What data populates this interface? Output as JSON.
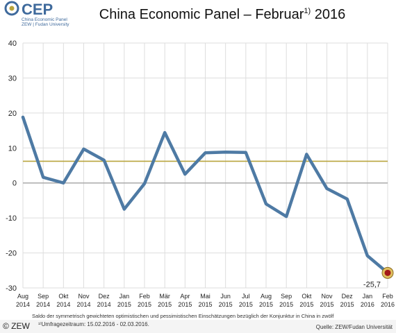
{
  "logo": {
    "text": "CEP",
    "line1": "China Economic Panel",
    "line2": "ZEW | Fudan University"
  },
  "title": "China Economic Panel – Februar",
  "title_sup": "1)",
  "title_year": "2016",
  "footer": {
    "copyright": "© ZEW",
    "note_line1": "Saldo der symmetrisch gewichteten optimistischen und pessimistischen Einschätzungen bezüglich der Konjunktur in China in zwölf",
    "note_line2": "¹⁾Umfragezeitraum: 15.02.2016 - 02.03.2016.",
    "source": "Quelle: ZEW/Fudan Universität"
  },
  "chart_data": {
    "type": "line",
    "categories": [
      [
        "Aug",
        "2014"
      ],
      [
        "Sep",
        "2014"
      ],
      [
        "Okt",
        "2014"
      ],
      [
        "Nov",
        "2014"
      ],
      [
        "Dez",
        "2014"
      ],
      [
        "Jan",
        "2015"
      ],
      [
        "Feb",
        "2015"
      ],
      [
        "Mär",
        "2015"
      ],
      [
        "Apr",
        "2015"
      ],
      [
        "Mai",
        "2015"
      ],
      [
        "Jun",
        "2015"
      ],
      [
        "Jul",
        "2015"
      ],
      [
        "Aug",
        "2015"
      ],
      [
        "Sep",
        "2015"
      ],
      [
        "Okt",
        "2015"
      ],
      [
        "Nov",
        "2015"
      ],
      [
        "Dez",
        "2015"
      ],
      [
        "Jan",
        "2016"
      ],
      [
        "Feb",
        "2016"
      ]
    ],
    "series": [
      {
        "values": [
          18.8,
          1.6,
          0.0,
          9.7,
          6.5,
          -7.5,
          -0.2,
          14.4,
          2.5,
          8.6,
          8.8,
          8.7,
          -6.0,
          -9.6,
          8.2,
          -1.6,
          -4.6,
          -20.8,
          -25.7
        ]
      }
    ],
    "reference_line": 6.2,
    "yticks": [
      40,
      30,
      20,
      10,
      0,
      -10,
      -20,
      -30
    ],
    "ylim": [
      -30,
      40
    ],
    "grid": true,
    "last_value_label": "-25,7",
    "colors": {
      "line": "#4e7aa4",
      "reference": "#b8a43c",
      "zero": "#aaaaaa",
      "grid": "#dddddd",
      "marker_fill": "#a31818",
      "marker_ring": "#e0c060"
    }
  }
}
